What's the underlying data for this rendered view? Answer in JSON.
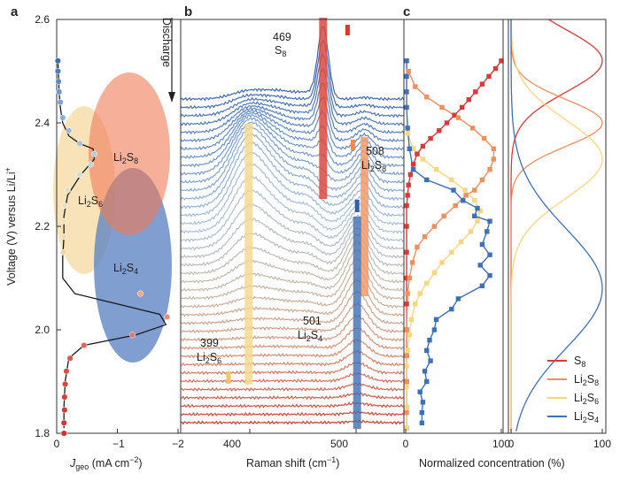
{
  "chart_data": [
    {
      "panel": "a",
      "type": "scatter",
      "xlabel": "J",
      "xlabel_sub": "geo",
      "xlabel_unit": " (mA cm",
      "xlabel_unit_sup": "−2",
      "xlabel_unit_end": ")",
      "ylabel": "Voltage (V) versus Li/Li",
      "ylabel_sup": "+",
      "xlim": [
        0,
        -2
      ],
      "ylim": [
        1.8,
        2.6
      ],
      "xticks": [
        "0",
        "−1",
        "−2"
      ],
      "yticks": [
        "1.8",
        "2.0",
        "2.2",
        "2.4",
        "2.6"
      ],
      "ellipse_labels": [
        {
          "main": "Li",
          "sub": "2",
          "end": "S",
          "sub2": "8"
        },
        {
          "main": "Li",
          "sub": "2",
          "end": "S",
          "sub2": "6"
        },
        {
          "main": "Li",
          "sub": "2",
          "end": "S",
          "sub2": "4"
        }
      ],
      "curve": [
        {
          "j": -0.02,
          "v": 2.52
        },
        {
          "j": -0.03,
          "v": 2.49
        },
        {
          "j": -0.04,
          "v": 2.46
        },
        {
          "j": -0.06,
          "v": 2.43
        },
        {
          "j": -0.1,
          "v": 2.4
        },
        {
          "j": -0.2,
          "v": 2.375
        },
        {
          "j": -0.38,
          "v": 2.36
        },
        {
          "j": -0.6,
          "v": 2.35
        },
        {
          "j": -0.62,
          "v": 2.33
        },
        {
          "j": -0.4,
          "v": 2.3
        },
        {
          "j": -0.18,
          "v": 2.26
        },
        {
          "j": -0.12,
          "v": 2.22
        },
        {
          "j": -0.12,
          "v": 2.18
        },
        {
          "j": -0.1,
          "v": 2.14
        },
        {
          "j": -0.1,
          "v": 2.1
        },
        {
          "j": -0.3,
          "v": 2.07
        },
        {
          "j": -1.0,
          "v": 2.05
        },
        {
          "j": -1.7,
          "v": 2.03
        },
        {
          "j": -1.8,
          "v": 2.01
        },
        {
          "j": -1.3,
          "v": 1.99
        },
        {
          "j": -0.45,
          "v": 1.97
        },
        {
          "j": -0.2,
          "v": 1.945
        },
        {
          "j": -0.14,
          "v": 1.9
        },
        {
          "j": -0.12,
          "v": 1.85
        },
        {
          "j": -0.12,
          "v": 1.81
        }
      ],
      "markers": [
        {
          "j": -0.02,
          "v": 2.52,
          "c": "#3a6fb5"
        },
        {
          "j": -0.02,
          "v": 2.5,
          "c": "#4a7cbe"
        },
        {
          "j": -0.03,
          "v": 2.48,
          "c": "#5a8ac6"
        },
        {
          "j": -0.04,
          "v": 2.46,
          "c": "#6a97cc"
        },
        {
          "j": -0.06,
          "v": 2.44,
          "c": "#7aa3d2"
        },
        {
          "j": -0.1,
          "v": 2.41,
          "c": "#8aaed6"
        },
        {
          "j": -0.2,
          "v": 2.385,
          "c": "#9bb9d9"
        },
        {
          "j": -0.38,
          "v": 2.36,
          "c": "#a9c2db"
        },
        {
          "j": -0.62,
          "v": 2.34,
          "c": "#b9cbd8"
        },
        {
          "j": -0.56,
          "v": 2.32,
          "c": "#c7d3d6"
        },
        {
          "j": -0.38,
          "v": 2.3,
          "c": "#d3dad2"
        },
        {
          "j": -0.18,
          "v": 2.27,
          "c": "#dfdfcc"
        },
        {
          "j": -0.13,
          "v": 2.24,
          "c": "#e8e3c4"
        },
        {
          "j": -0.12,
          "v": 2.21,
          "c": "#ede2b8"
        },
        {
          "j": -0.12,
          "v": 2.18,
          "c": "#f0dbab"
        },
        {
          "j": -0.11,
          "v": 2.15,
          "c": "#f2d29f"
        },
        {
          "j": -1.38,
          "v": 2.07,
          "c": "#f0a888"
        },
        {
          "j": -1.82,
          "v": 2.025,
          "c": "#ea8c76"
        },
        {
          "j": -1.25,
          "v": 1.99,
          "c": "#e47866"
        },
        {
          "j": -0.45,
          "v": 1.97,
          "c": "#de6858"
        },
        {
          "j": -0.22,
          "v": 1.945,
          "c": "#d95a4c"
        },
        {
          "j": -0.16,
          "v": 1.92,
          "c": "#d44e42"
        },
        {
          "j": -0.14,
          "v": 1.895,
          "c": "#d2473b"
        },
        {
          "j": -0.13,
          "v": 1.87,
          "c": "#d04236"
        },
        {
          "j": -0.13,
          "v": 1.845,
          "c": "#ce3d32"
        },
        {
          "j": -0.12,
          "v": 1.82,
          "c": "#cc3a2f"
        },
        {
          "j": -0.12,
          "v": 1.8,
          "c": "#cb372d"
        }
      ]
    },
    {
      "panel": "b",
      "type": "line",
      "xlabel": "Raman shift (cm",
      "xlabel_sup": "−1",
      "xlabel_end": ")",
      "xlim": [
        335,
        545
      ],
      "xticks": [
        "400",
        "500"
      ],
      "direction_label": "Discharge",
      "n_spectra": 40,
      "peaks": [
        {
          "shift": 469,
          "label_main": "S",
          "label_sub": "8",
          "color": "#d9493f"
        },
        {
          "shift": 508,
          "label_main": "Li",
          "label_sub": "2",
          "label_end": "S",
          "label_sub2": "8",
          "color": "#f29a6b"
        },
        {
          "shift": 501,
          "label_main": "Li",
          "label_sub": "2",
          "label_end": "S",
          "label_sub2": "4",
          "color": "#3f6fb3"
        },
        {
          "shift": 399,
          "label_main": "Li",
          "label_sub": "2",
          "label_end": "S",
          "label_sub2": "6",
          "color": "#f5d98f"
        }
      ]
    },
    {
      "panel": "c",
      "type": "scatter",
      "xlabel": "Normalized concentration (%)",
      "xlim": [
        0,
        100
      ],
      "xticks": [
        "0",
        "100"
      ],
      "xticks_right": [
        "0",
        "100"
      ],
      "series": [
        {
          "name": "S",
          "sub": "8",
          "color": "#d9393a",
          "sx": 0.2,
          "points": [
            [
              100,
              2.52
            ],
            [
              94,
              2.505
            ],
            [
              87,
              2.49
            ],
            [
              80,
              2.475
            ],
            [
              73,
              2.46
            ],
            [
              66,
              2.445
            ],
            [
              59,
              2.43
            ],
            [
              51,
              2.415
            ],
            [
              43,
              2.4
            ],
            [
              35,
              2.385
            ],
            [
              26,
              2.37
            ],
            [
              18,
              2.355
            ],
            [
              12,
              2.34
            ],
            [
              8,
              2.32
            ],
            [
              5,
              2.3
            ],
            [
              3,
              2.28
            ],
            [
              2,
              2.26
            ],
            [
              1,
              2.24
            ],
            [
              1,
              2.2
            ],
            [
              1,
              2.15
            ],
            [
              1,
              2.1
            ],
            [
              1,
              2.05
            ],
            [
              1,
              2.0
            ],
            [
              1,
              1.95
            ],
            [
              1,
              1.9
            ],
            [
              1,
              1.85
            ],
            [
              1,
              1.81
            ]
          ]
        },
        {
          "name": "Li",
          "sub": "2",
          "end": "S",
          "sub2": "8",
          "color": "#f28d5c",
          "sx": 0.2,
          "points": [
            [
              3,
              2.5
            ],
            [
              10,
              2.47
            ],
            [
              22,
              2.45
            ],
            [
              38,
              2.43
            ],
            [
              55,
              2.41
            ],
            [
              70,
              2.39
            ],
            [
              82,
              2.37
            ],
            [
              92,
              2.35
            ],
            [
              92,
              2.33
            ],
            [
              88,
              2.31
            ],
            [
              80,
              2.29
            ],
            [
              72,
              2.27
            ],
            [
              63,
              2.26
            ],
            [
              52,
              2.24
            ],
            [
              40,
              2.22
            ],
            [
              30,
              2.2
            ],
            [
              20,
              2.18
            ],
            [
              12,
              2.16
            ],
            [
              7,
              2.13
            ],
            [
              4,
              2.1
            ],
            [
              2,
              2.07
            ],
            [
              1,
              2.0
            ],
            [
              1,
              1.95
            ],
            [
              1,
              1.9
            ],
            [
              1,
              1.84
            ]
          ]
        },
        {
          "name": "Li",
          "sub": "2",
          "end": "S",
          "sub2": "6",
          "color": "#f7d67f",
          "sx": 0.2,
          "points": [
            [
              2,
              2.38
            ],
            [
              8,
              2.35
            ],
            [
              18,
              2.33
            ],
            [
              32,
              2.31
            ],
            [
              48,
              2.29
            ],
            [
              62,
              2.27
            ],
            [
              72,
              2.25
            ],
            [
              78,
              2.23
            ],
            [
              75,
              2.21
            ],
            [
              68,
              2.19
            ],
            [
              58,
              2.17
            ],
            [
              48,
              2.15
            ],
            [
              38,
              2.13
            ],
            [
              30,
              2.11
            ],
            [
              22,
              2.09
            ],
            [
              15,
              2.07
            ],
            [
              10,
              2.05
            ],
            [
              6,
              2.02
            ],
            [
              4,
              1.99
            ],
            [
              2,
              1.96
            ],
            [
              1,
              1.93
            ],
            [
              1,
              1.89
            ],
            [
              1,
              1.85
            ],
            [
              1,
              1.81
            ]
          ]
        },
        {
          "name": "Li",
          "sub": "2",
          "end": "S",
          "sub2": "4",
          "color": "#3c70b9",
          "sx": 0.2,
          "points": [
            [
              1,
              2.52
            ],
            [
              1,
              2.49
            ],
            [
              1,
              2.46
            ],
            [
              1,
              2.43
            ],
            [
              2,
              2.39
            ],
            [
              4,
              2.35
            ],
            [
              8,
              2.31
            ],
            [
              22,
              2.29
            ],
            [
              50,
              2.27
            ],
            [
              60,
              2.25
            ],
            [
              75,
              2.235
            ],
            [
              72,
              2.22
            ],
            [
              88,
              2.21
            ],
            [
              85,
              2.19
            ],
            [
              80,
              2.165
            ],
            [
              88,
              2.145
            ],
            [
              78,
              2.125
            ],
            [
              88,
              2.105
            ],
            [
              80,
              2.085
            ],
            [
              55,
              2.06
            ],
            [
              48,
              2.04
            ],
            [
              32,
              2.02
            ],
            [
              30,
              2.0
            ],
            [
              25,
              1.98
            ],
            [
              22,
              1.96
            ],
            [
              26,
              1.94
            ],
            [
              20,
              1.92
            ],
            [
              22,
              1.9
            ],
            [
              15,
              1.88
            ],
            [
              18,
              1.86
            ],
            [
              17,
              1.84
            ],
            [
              17,
              1.82
            ]
          ]
        }
      ],
      "legend": [
        {
          "main": "S",
          "sub": "8",
          "color": "#d9393a"
        },
        {
          "main": "Li",
          "sub": "2",
          "end": "S",
          "sub2": "8",
          "color": "#f28d5c"
        },
        {
          "main": "Li",
          "sub": "2",
          "end": "S",
          "sub2": "6",
          "color": "#f7d67f"
        },
        {
          "main": "Li",
          "sub": "2",
          "end": "S",
          "sub2": "4",
          "color": "#3c70b9"
        }
      ],
      "gaussians": [
        {
          "mu": 2.52,
          "sigma": 0.06,
          "amp": 100,
          "color": "#d9393a"
        },
        {
          "mu": 2.4,
          "sigma": 0.045,
          "amp": 100,
          "color": "#f28d5c"
        },
        {
          "mu": 2.33,
          "sigma": 0.075,
          "amp": 100,
          "color": "#f7d67f"
        },
        {
          "mu": 2.08,
          "sigma": 0.115,
          "amp": 100,
          "color": "#3c70b9"
        }
      ]
    }
  ]
}
